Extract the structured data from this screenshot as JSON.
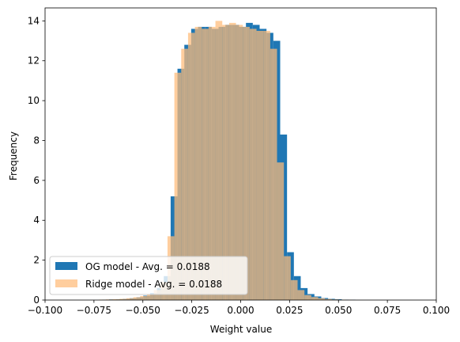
{
  "chart_data": {
    "type": "bar",
    "xlabel": "Weight value",
    "ylabel": "Frequency",
    "xlim": [
      -0.1,
      0.1
    ],
    "ylim": [
      0,
      14.65
    ],
    "xticks": [
      "−0.100",
      "−0.075",
      "−0.050",
      "−0.025",
      "0.000",
      "0.025",
      "0.050",
      "0.075",
      "0.100"
    ],
    "xtick_values": [
      -0.1,
      -0.075,
      -0.05,
      -0.025,
      0.0,
      0.025,
      0.05,
      0.075,
      0.1
    ],
    "yticks": [
      "0",
      "2",
      "4",
      "6",
      "8",
      "10",
      "12",
      "14"
    ],
    "ytick_values": [
      0,
      2,
      4,
      6,
      8,
      10,
      12,
      14
    ],
    "legend_position": "lower-left",
    "series": [
      {
        "name": "OG model - Avg. = 0.0188",
        "color": "#1f77b4",
        "alpha": 1,
        "bin_start": -0.0708,
        "bin_width": 0.0035,
        "values": [
          0.02,
          0.03,
          0.04,
          0.06,
          0.09,
          0.14,
          0.22,
          0.35,
          0.6,
          1.2,
          5.2,
          11.6,
          12.8,
          13.6,
          13.7,
          13.7,
          13.6,
          13.7,
          13.8,
          13.8,
          13.7,
          13.9,
          13.8,
          13.6,
          13.4,
          13.0,
          8.3,
          2.4,
          1.2,
          0.6,
          0.3,
          0.18,
          0.1,
          0.06,
          0.04,
          0.02,
          0.01
        ]
      },
      {
        "name": "Ridge model - Avg. = 0.0188",
        "color": "#ffbb78",
        "alpha": 0.72,
        "bin_start": -0.0724,
        "bin_width": 0.0035,
        "values": [
          0.02,
          0.03,
          0.04,
          0.06,
          0.09,
          0.14,
          0.2,
          0.3,
          0.5,
          0.9,
          3.2,
          11.4,
          12.6,
          13.4,
          13.7,
          13.6,
          13.7,
          14.0,
          13.8,
          13.9,
          13.8,
          13.7,
          13.6,
          13.5,
          13.5,
          12.6,
          6.9,
          2.2,
          1.0,
          0.5,
          0.25,
          0.15,
          0.09,
          0.05,
          0.03,
          0.02,
          0.01
        ]
      }
    ]
  }
}
